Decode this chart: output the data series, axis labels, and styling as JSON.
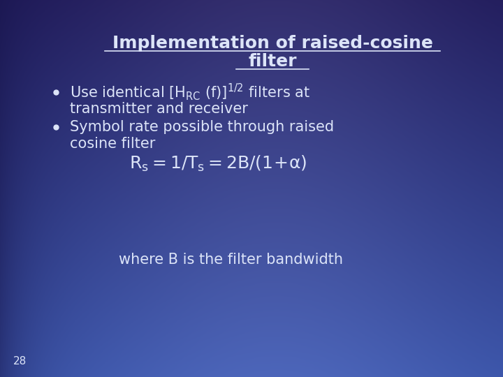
{
  "title_line1": "Implementation of raised-cosine",
  "title_line2": "filter",
  "bullet1_line1": "Use identical [H",
  "bullet1_sub": "RC",
  "bullet1_mid": " (f)]",
  "bullet1_sup": "1/2",
  "bullet1_end": " filters at",
  "bullet1_line2": "transmitter and receiver",
  "bullet2_line1": "Symbol rate possible through raised",
  "bullet2_line2": "cosine filter",
  "footer": "where B is the filter bandwidth",
  "page_num": "28",
  "text_color": "#dce4f8",
  "title_color": "#dce4f8",
  "title_fontsize": 18,
  "body_fontsize": 15,
  "formula_fontsize": 16,
  "footer_fontsize": 14,
  "page_fontsize": 11
}
